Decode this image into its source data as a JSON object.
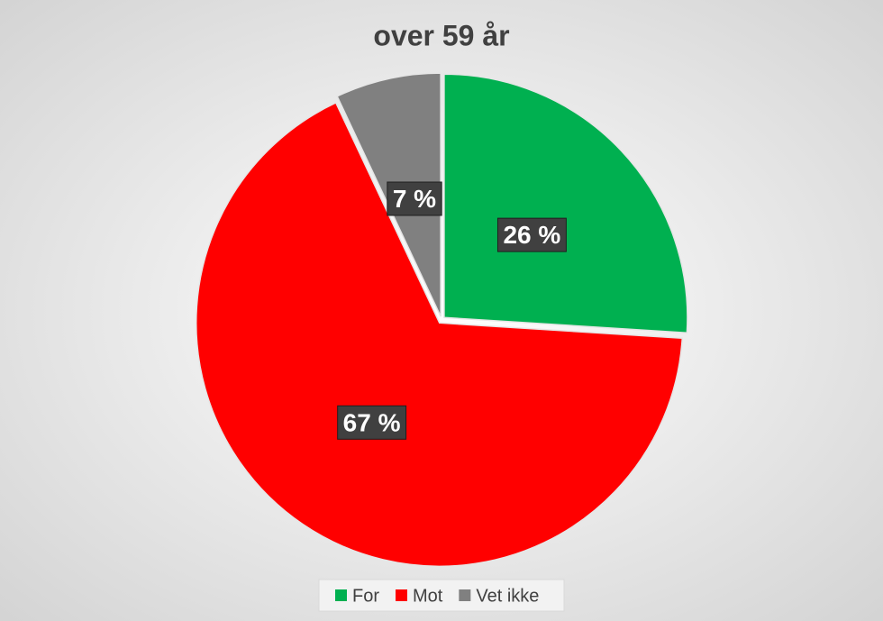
{
  "chart_data": {
    "type": "pie",
    "title": "over 59 år",
    "categories": [
      "For",
      "Mot",
      "Vet ikke"
    ],
    "values": [
      26,
      67,
      7
    ],
    "value_labels": [
      "26 %",
      "67 %",
      "7 %"
    ],
    "colors": [
      "#00b050",
      "#ff0000",
      "#808080"
    ],
    "legend": "bottom"
  }
}
